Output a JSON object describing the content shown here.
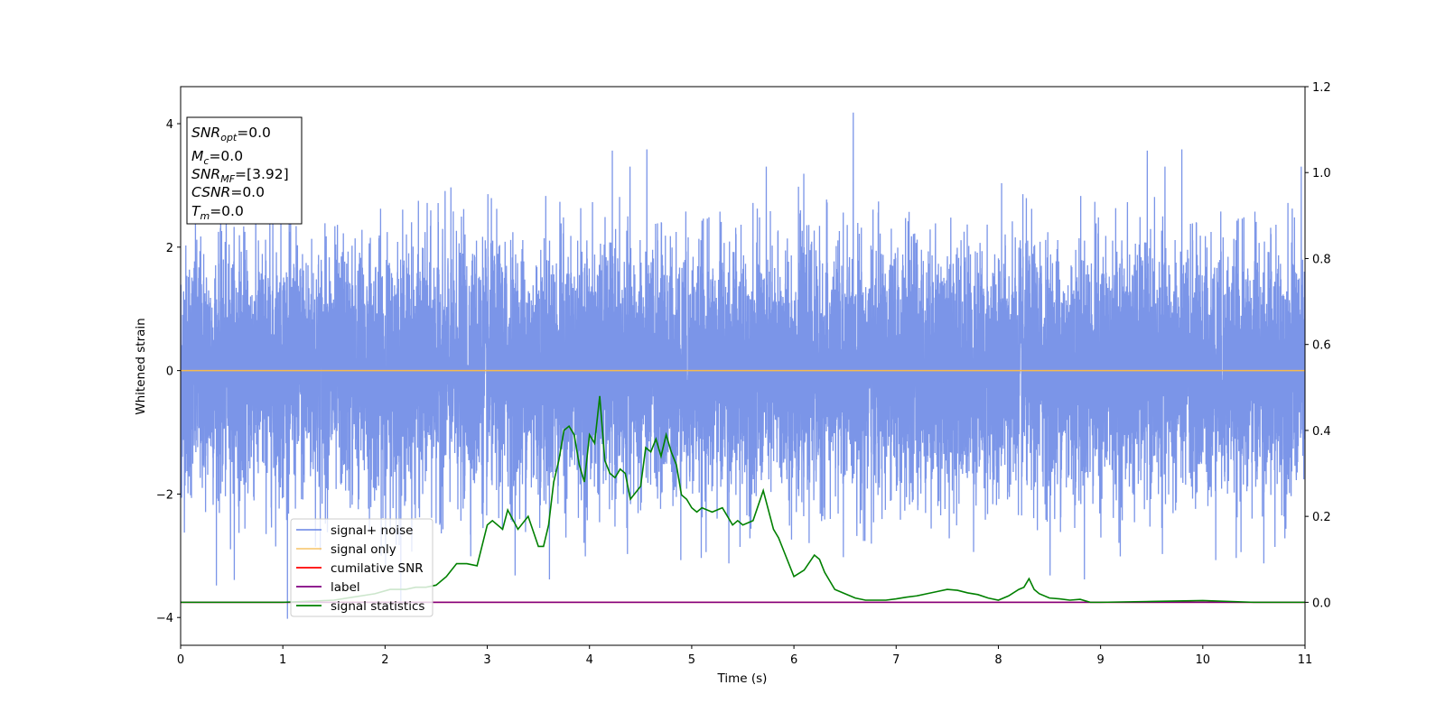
{
  "chart_data": {
    "type": "line",
    "xlabel": "Time (s)",
    "ylabel": "Whitened strain",
    "xlim": [
      0,
      11
    ],
    "ylim_left": [
      -4.45,
      4.6
    ],
    "ylim_right": [
      -0.1,
      1.2
    ],
    "x_ticks": [
      "0",
      "1",
      "2",
      "3",
      "4",
      "5",
      "6",
      "7",
      "8",
      "9",
      "10",
      "11"
    ],
    "y_left_ticks": [
      "−4",
      "−2",
      "0",
      "2",
      "4"
    ],
    "y_right_ticks": [
      "0.0",
      "0.2",
      "0.4",
      "0.6",
      "0.8",
      "1.0",
      "1.2"
    ],
    "grid": false,
    "legend_position": "lower-left",
    "series": [
      {
        "name": "signal+ noise",
        "axis": "left",
        "color": "#6d8ae6",
        "description_values": {
          "mean": 0.0,
          "std": 1.0,
          "min": -4.02,
          "max": 4.18,
          "n_samples": 11000
        }
      },
      {
        "name": "signal only",
        "axis": "left",
        "color": "#f5b94f",
        "x": [
          0,
          11
        ],
        "y": [
          0.0,
          0.0
        ]
      },
      {
        "name": "cumilative SNR",
        "axis": "right",
        "color": "#ff0000",
        "x": [
          0,
          11
        ],
        "y": [
          0.0,
          0.0
        ]
      },
      {
        "name": "label",
        "axis": "right",
        "color": "#800080",
        "x": [
          0,
          11
        ],
        "y": [
          0.0,
          0.0
        ]
      },
      {
        "name": "signal statistics",
        "axis": "right",
        "color": "#008000",
        "x": [
          0.0,
          0.5,
          1.0,
          1.5,
          1.9,
          2.05,
          2.2,
          2.3,
          2.4,
          2.5,
          2.6,
          2.7,
          2.8,
          2.9,
          3.0,
          3.05,
          3.15,
          3.2,
          3.3,
          3.4,
          3.5,
          3.55,
          3.6,
          3.65,
          3.7,
          3.75,
          3.8,
          3.85,
          3.9,
          3.95,
          4.0,
          4.05,
          4.1,
          4.15,
          4.2,
          4.25,
          4.3,
          4.35,
          4.4,
          4.5,
          4.55,
          4.6,
          4.65,
          4.7,
          4.75,
          4.8,
          4.85,
          4.9,
          4.95,
          5.0,
          5.05,
          5.1,
          5.2,
          5.3,
          5.4,
          5.45,
          5.5,
          5.6,
          5.7,
          5.8,
          5.85,
          5.9,
          6.0,
          6.1,
          6.2,
          6.25,
          6.3,
          6.4,
          6.5,
          6.6,
          6.7,
          6.8,
          6.9,
          7.0,
          7.1,
          7.2,
          7.3,
          7.4,
          7.5,
          7.6,
          7.7,
          7.8,
          7.9,
          8.0,
          8.1,
          8.2,
          8.25,
          8.3,
          8.35,
          8.4,
          8.5,
          8.6,
          8.7,
          8.8,
          8.9,
          9.0,
          9.5,
          10.0,
          10.5,
          11.0
        ],
        "y": [
          0.0,
          0.0,
          0.0,
          0.005,
          0.02,
          0.03,
          0.03,
          0.035,
          0.035,
          0.04,
          0.06,
          0.09,
          0.09,
          0.085,
          0.18,
          0.19,
          0.17,
          0.215,
          0.17,
          0.2,
          0.13,
          0.13,
          0.18,
          0.28,
          0.33,
          0.4,
          0.41,
          0.39,
          0.32,
          0.28,
          0.39,
          0.37,
          0.48,
          0.33,
          0.3,
          0.29,
          0.31,
          0.3,
          0.24,
          0.27,
          0.36,
          0.35,
          0.38,
          0.34,
          0.39,
          0.35,
          0.32,
          0.25,
          0.24,
          0.22,
          0.21,
          0.22,
          0.21,
          0.22,
          0.18,
          0.19,
          0.18,
          0.19,
          0.26,
          0.17,
          0.15,
          0.12,
          0.06,
          0.075,
          0.11,
          0.1,
          0.07,
          0.03,
          0.02,
          0.01,
          0.005,
          0.005,
          0.005,
          0.008,
          0.012,
          0.015,
          0.02,
          0.025,
          0.03,
          0.028,
          0.022,
          0.018,
          0.01,
          0.005,
          0.015,
          0.03,
          0.035,
          0.055,
          0.03,
          0.02,
          0.01,
          0.008,
          0.005,
          0.007,
          0.0,
          0.0,
          0.002,
          0.004,
          0.0,
          0.0
        ]
      }
    ],
    "annotation_box": {
      "lines": [
        {
          "name": "SNR",
          "sub": "opt",
          "value": "=0.0"
        },
        {
          "name": "M",
          "sub": "c",
          "value": "=0.0"
        },
        {
          "name": "SNR",
          "sub": "MF",
          "value": "=[3.92]"
        },
        {
          "name": "CSNR",
          "sub": "",
          "value": "=0.0"
        },
        {
          "name": "T",
          "sub": "m",
          "value": "=0.0"
        }
      ]
    }
  }
}
